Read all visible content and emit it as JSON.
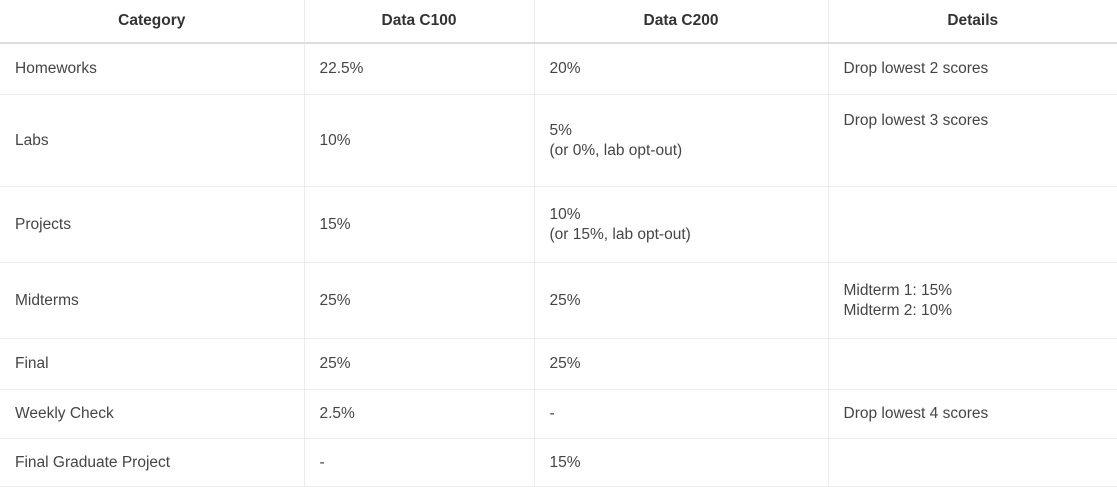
{
  "table": {
    "headers": {
      "category": "Category",
      "c100": "Data C100",
      "c200": "Data C200",
      "details": "Details"
    },
    "rows": [
      {
        "category": "Homeworks",
        "c100": "22.5%",
        "c200": [
          "20%"
        ],
        "details": [
          "Drop lowest 2 scores"
        ]
      },
      {
        "category": "Labs",
        "c100": "10%",
        "c200": [
          "5%",
          "(or 0%, lab opt-out)"
        ],
        "details": [
          "Drop lowest 3 scores"
        ]
      },
      {
        "category": "Projects",
        "c100": "15%",
        "c200": [
          "10%",
          "(or 15%, lab opt-out)"
        ],
        "details": [
          ""
        ]
      },
      {
        "category": "Midterms",
        "c100": "25%",
        "c200": [
          "25%"
        ],
        "details": [
          "Midterm 1: 15%",
          "Midterm 2: 10%"
        ]
      },
      {
        "category": "Final",
        "c100": "25%",
        "c200": [
          "25%"
        ],
        "details": [
          ""
        ]
      },
      {
        "category": "Weekly Check",
        "c100": "2.5%",
        "c200": [
          "-"
        ],
        "details": [
          "Drop lowest 4 scores"
        ]
      },
      {
        "category": "Final Graduate Project",
        "c100": "-",
        "c200": [
          "15%"
        ],
        "details": [
          ""
        ]
      }
    ]
  }
}
